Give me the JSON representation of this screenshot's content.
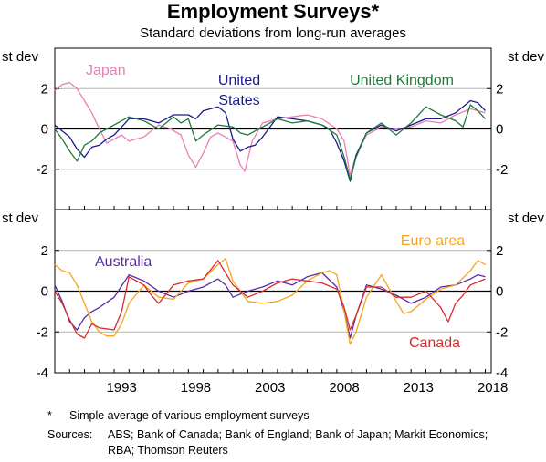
{
  "title": "Employment Surveys*",
  "subtitle": "Standard deviations from long-run averages",
  "footnote": {
    "marker": "*",
    "text": "Simple average of various employment surveys"
  },
  "sources": {
    "label": "Sources:",
    "text": "ABS; Bank of Canada; Bank of England; Bank of Japan; Markit Economics; RBA; Thomson Reuters"
  },
  "chart_data": [
    {
      "type": "line",
      "panel": "top",
      "ylabel": "st dev",
      "ylim": [
        -4,
        4
      ],
      "yticks": [
        -2,
        0,
        2
      ],
      "grid": true,
      "xlim": [
        1989.0,
        2018.4
      ],
      "series": [
        {
          "name": "Japan",
          "color": "#e87fb4",
          "x": [
            1989.0,
            1989.5,
            1990.0,
            1990.5,
            1991.0,
            1991.5,
            1992.0,
            1992.5,
            1993.0,
            1993.5,
            1994.0,
            1995.0,
            1996.0,
            1996.8,
            1997.5,
            1998.0,
            1998.5,
            1999.0,
            1999.5,
            2000.0,
            2000.5,
            2001.0,
            2001.5,
            2001.8,
            2002.3,
            2003.0,
            2004.0,
            2005.0,
            2006.0,
            2007.0,
            2008.0,
            2008.5,
            2008.9,
            2009.3,
            2010.0,
            2011.0,
            2012.0,
            2013.0,
            2014.0,
            2015.0,
            2016.0,
            2017.0,
            2017.5,
            2018.0
          ],
          "y": [
            1.9,
            2.2,
            2.3,
            2.0,
            1.4,
            0.8,
            0.0,
            -0.7,
            -0.5,
            -0.3,
            -0.6,
            -0.4,
            0.2,
            0.0,
            -0.3,
            -1.3,
            -1.9,
            -1.2,
            -0.4,
            -0.2,
            -0.4,
            -0.6,
            -1.8,
            -2.1,
            -0.6,
            0.3,
            0.5,
            0.6,
            0.7,
            0.5,
            0.0,
            -0.6,
            -2.3,
            -1.3,
            -0.3,
            0.1,
            0.0,
            0.1,
            0.4,
            0.3,
            0.7,
            1.0,
            0.9,
            0.8
          ]
        },
        {
          "name": "United States",
          "color": "#1a1a8c",
          "x": [
            1989.0,
            1989.5,
            1990.0,
            1990.5,
            1991.0,
            1991.5,
            1992.0,
            1992.5,
            1993.0,
            1993.5,
            1994.0,
            1995.0,
            1996.0,
            1997.0,
            1998.0,
            1998.5,
            1999.0,
            1999.5,
            2000.0,
            2000.5,
            2001.0,
            2001.5,
            2002.0,
            2002.5,
            2003.0,
            2004.0,
            2005.0,
            2006.0,
            2007.0,
            2007.5,
            2008.0,
            2008.5,
            2008.9,
            2009.3,
            2010.0,
            2011.0,
            2012.0,
            2013.0,
            2014.0,
            2015.0,
            2016.0,
            2017.0,
            2017.5,
            2018.0
          ],
          "y": [
            0.2,
            -0.1,
            -0.4,
            -1.0,
            -1.4,
            -0.9,
            -0.8,
            -0.5,
            -0.3,
            0.1,
            0.5,
            0.5,
            0.3,
            0.7,
            0.7,
            0.5,
            0.9,
            1.0,
            1.1,
            0.8,
            -0.5,
            -1.1,
            -0.9,
            -0.8,
            -0.4,
            0.6,
            0.5,
            0.4,
            0.2,
            0.0,
            -0.7,
            -1.6,
            -2.6,
            -1.3,
            -0.2,
            0.2,
            -0.1,
            0.2,
            0.5,
            0.5,
            0.8,
            1.4,
            1.3,
            0.9
          ]
        },
        {
          "name": "United Kingdom",
          "color": "#1f7a3a",
          "x": [
            1989.0,
            1989.5,
            1990.0,
            1990.5,
            1991.0,
            1991.5,
            1992.0,
            1992.5,
            1993.0,
            1993.5,
            1994.0,
            1995.0,
            1996.0,
            1997.0,
            1997.5,
            1998.0,
            1998.5,
            1999.0,
            2000.0,
            2001.0,
            2001.5,
            2002.0,
            2003.0,
            2004.0,
            2005.0,
            2006.0,
            2007.0,
            2008.0,
            2008.5,
            2008.9,
            2009.3,
            2010.0,
            2011.0,
            2012.0,
            2013.0,
            2014.0,
            2015.0,
            2016.0,
            2016.5,
            2017.0,
            2017.5,
            2018.0
          ],
          "y": [
            0.0,
            -0.5,
            -1.1,
            -1.6,
            -0.8,
            -0.6,
            -0.2,
            0.0,
            0.2,
            0.4,
            0.6,
            0.4,
            0.0,
            0.6,
            0.3,
            0.5,
            -0.6,
            -0.3,
            0.2,
            0.1,
            -0.2,
            -0.3,
            0.1,
            0.5,
            0.3,
            0.4,
            0.2,
            -0.3,
            -1.4,
            -2.5,
            -1.4,
            -0.2,
            0.3,
            -0.3,
            0.3,
            1.1,
            0.7,
            0.4,
            0.1,
            1.2,
            0.9,
            0.5
          ]
        }
      ]
    },
    {
      "type": "line",
      "panel": "bottom",
      "ylabel": "st dev",
      "ylim": [
        -4,
        4
      ],
      "yticks": [
        -4,
        -2,
        0,
        2
      ],
      "grid": true,
      "xlim": [
        1989.0,
        2018.4
      ],
      "xticks": [
        "1993",
        "1998",
        "2003",
        "2008",
        "2013",
        "2018"
      ],
      "series": [
        {
          "name": "Australia",
          "color": "#5a2ba6",
          "x": [
            1989.0,
            1989.5,
            1990.0,
            1990.5,
            1991.0,
            1991.5,
            1992.0,
            1993.0,
            1994.0,
            1995.0,
            1996.0,
            1997.0,
            1998.0,
            1999.0,
            2000.0,
            2000.5,
            2001.0,
            2002.0,
            2003.0,
            2004.0,
            2005.0,
            2006.0,
            2007.0,
            2008.0,
            2008.5,
            2008.9,
            2009.3,
            2010.0,
            2011.0,
            2012.0,
            2013.0,
            2014.0,
            2015.0,
            2016.0,
            2017.0,
            2017.5,
            2018.0
          ],
          "y": [
            0.3,
            -0.5,
            -1.5,
            -1.9,
            -1.3,
            -1.0,
            -0.8,
            -0.3,
            0.8,
            0.5,
            0.0,
            -0.3,
            0.0,
            0.2,
            0.6,
            0.3,
            -0.3,
            0.0,
            0.2,
            0.5,
            0.3,
            0.7,
            0.9,
            0.2,
            -1.0,
            -2.3,
            -1.2,
            0.3,
            0.1,
            -0.2,
            -0.6,
            -0.3,
            0.2,
            0.3,
            0.6,
            0.8,
            0.7
          ]
        },
        {
          "name": "Euro area",
          "color": "#f2a51d",
          "x": [
            1989.0,
            1989.5,
            1990.0,
            1990.5,
            1991.0,
            1991.5,
            1992.0,
            1992.5,
            1993.0,
            1993.5,
            1994.0,
            1995.0,
            1996.0,
            1997.0,
            1998.0,
            1999.0,
            2000.0,
            2000.5,
            2001.0,
            2002.0,
            2003.0,
            2004.0,
            2005.0,
            2006.0,
            2007.0,
            2007.5,
            2008.0,
            2008.5,
            2008.9,
            2009.3,
            2010.0,
            2011.0,
            2012.0,
            2012.5,
            2013.0,
            2014.0,
            2015.0,
            2016.0,
            2017.0,
            2017.5,
            2018.0
          ],
          "y": [
            1.3,
            1.0,
            0.9,
            0.3,
            -0.6,
            -1.5,
            -2.0,
            -2.2,
            -2.2,
            -1.6,
            -0.6,
            0.3,
            -0.3,
            -0.4,
            0.4,
            0.6,
            1.3,
            1.6,
            0.5,
            -0.5,
            -0.6,
            -0.5,
            -0.2,
            0.5,
            0.9,
            1.0,
            0.8,
            -1.0,
            -2.6,
            -2.0,
            -0.3,
            0.8,
            -0.5,
            -1.1,
            -1.0,
            -0.4,
            0.1,
            0.3,
            1.0,
            1.5,
            1.3
          ]
        },
        {
          "name": "Canada",
          "color": "#d62b2b",
          "x": [
            1989.0,
            1989.5,
            1990.0,
            1990.5,
            1991.0,
            1991.5,
            1992.0,
            1993.0,
            1993.5,
            1994.0,
            1995.0,
            1995.5,
            1996.0,
            1997.0,
            1998.0,
            1999.0,
            2000.0,
            2001.0,
            2002.0,
            2003.0,
            2004.0,
            2005.0,
            2006.0,
            2007.0,
            2008.0,
            2008.5,
            2008.9,
            2009.3,
            2010.0,
            2011.0,
            2012.0,
            2013.0,
            2014.0,
            2015.0,
            2015.5,
            2016.0,
            2016.5,
            2017.0,
            2018.0
          ],
          "y": [
            0.0,
            -0.6,
            -1.4,
            -2.1,
            -2.3,
            -1.6,
            -1.8,
            -1.9,
            -1.0,
            0.7,
            0.3,
            -0.2,
            -0.6,
            0.3,
            0.5,
            0.6,
            1.5,
            0.3,
            -0.3,
            0.0,
            0.4,
            0.6,
            0.5,
            0.4,
            0.1,
            -0.8,
            -1.9,
            -1.2,
            0.2,
            0.2,
            -0.3,
            -0.3,
            0.0,
            -0.8,
            -1.5,
            -0.6,
            -0.2,
            0.3,
            0.6
          ]
        }
      ]
    }
  ]
}
